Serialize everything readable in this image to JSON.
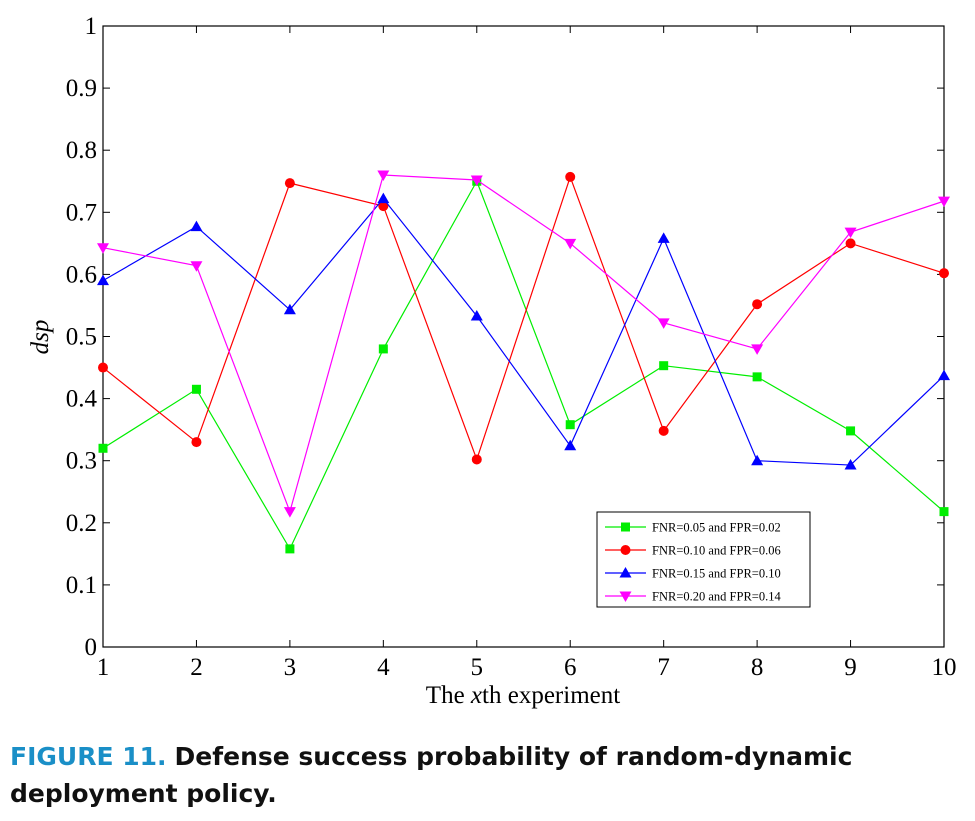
{
  "chart_data": {
    "type": "line",
    "xlabel": "The xth experiment",
    "xlabel_parts": [
      "The ",
      "x",
      "th experiment"
    ],
    "ylabel": "dsp",
    "xlim": [
      1,
      10
    ],
    "ylim": [
      0,
      1
    ],
    "x": [
      1,
      2,
      3,
      4,
      5,
      6,
      7,
      8,
      9,
      10
    ],
    "x_ticks": [
      "1",
      "2",
      "3",
      "4",
      "5",
      "6",
      "7",
      "8",
      "9",
      "10"
    ],
    "y_ticks": [
      0,
      0.1,
      0.2,
      0.3,
      0.4,
      0.5,
      0.6,
      0.7,
      0.8,
      0.9,
      1
    ],
    "y_tick_labels": [
      "0",
      "0.1",
      "0.2",
      "0.3",
      "0.4",
      "0.5",
      "0.6",
      "0.7",
      "0.8",
      "0.9",
      "1"
    ],
    "grid": false,
    "legend_position": "lower-right",
    "series": [
      {
        "name": "FNR=0.05 and FPR=0.02",
        "color": "#00ee00",
        "marker": "square",
        "values": [
          0.32,
          0.415,
          0.158,
          0.48,
          0.75,
          0.358,
          0.453,
          0.435,
          0.348,
          0.218
        ]
      },
      {
        "name": "FNR=0.10 and FPR=0.06",
        "color": "#ff0000",
        "marker": "circle",
        "values": [
          0.45,
          0.33,
          0.747,
          0.71,
          0.302,
          0.757,
          0.348,
          0.552,
          0.65,
          0.602
        ]
      },
      {
        "name": "FNR=0.15 and FPR=0.10",
        "color": "#0000ff",
        "marker": "triangle-up",
        "values": [
          0.59,
          0.677,
          0.543,
          0.722,
          0.533,
          0.324,
          0.658,
          0.3,
          0.293,
          0.437
        ]
      },
      {
        "name": "FNR=0.20 and FPR=0.14",
        "color": "#ff00ff",
        "marker": "triangle-down",
        "values": [
          0.643,
          0.614,
          0.218,
          0.76,
          0.752,
          0.65,
          0.522,
          0.48,
          0.668,
          0.718
        ]
      }
    ]
  },
  "caption": {
    "label": "FIGURE 11.",
    "text": "Defense success probability of random-dynamic deployment policy."
  }
}
